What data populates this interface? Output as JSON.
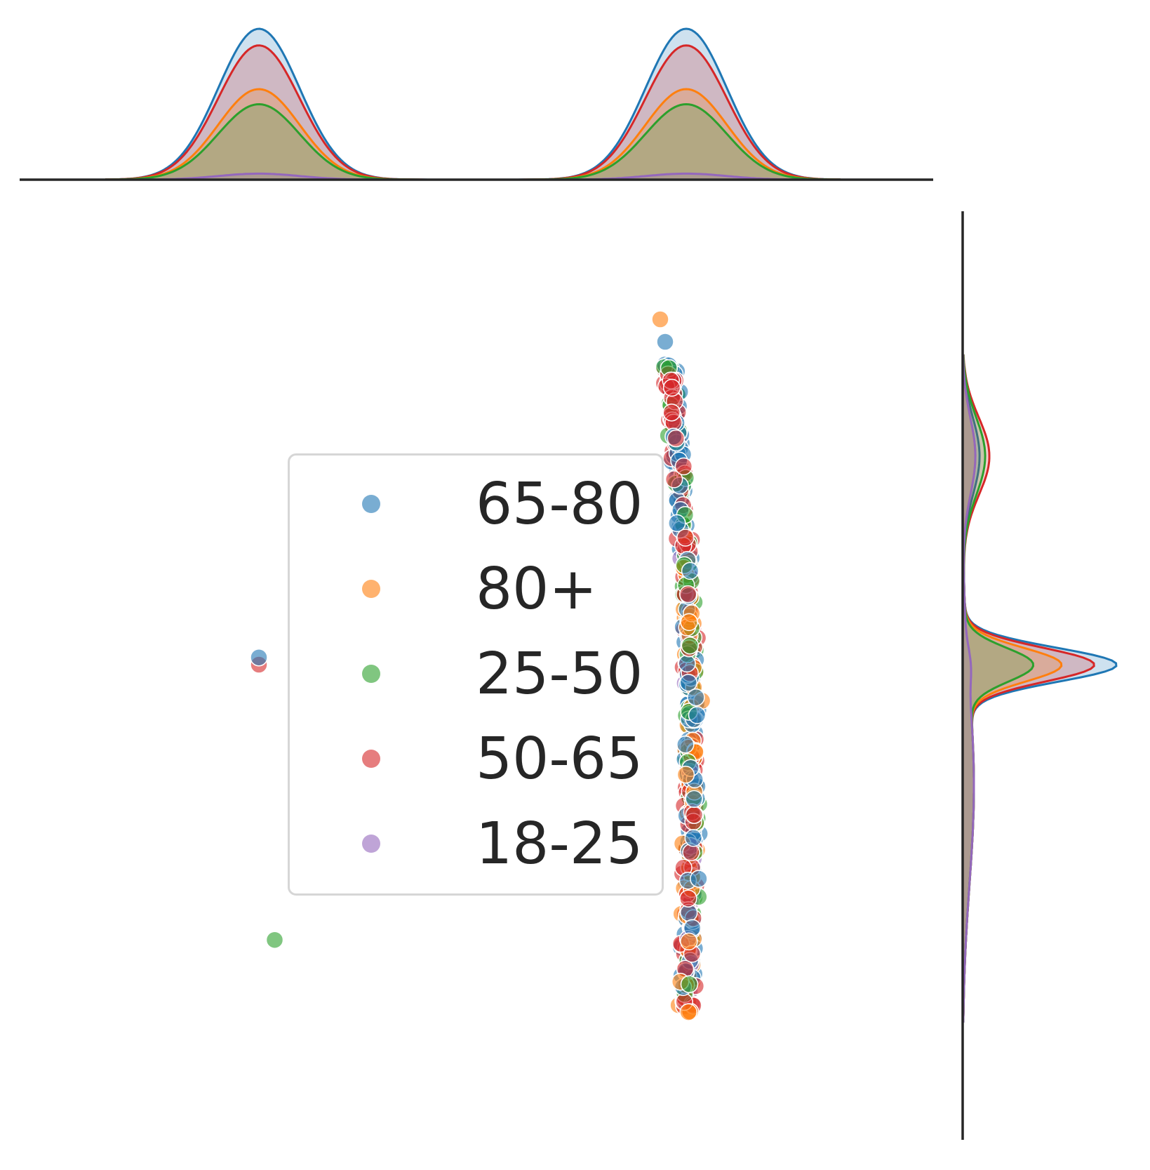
{
  "chart_data": {
    "type": "scatter",
    "subtype": "jointplot with marginal KDE",
    "title": "",
    "xlabel": "",
    "ylabel": "",
    "axes_visible": false,
    "grid": false,
    "legend_placement": "center",
    "series": [
      {
        "name": "65-80",
        "color": "#1f77b4",
        "marginal_x_peak": 1.0,
        "marginal_y_peak": 1.0
      },
      {
        "name": "80+",
        "color": "#ff7f0e",
        "marginal_x_peak": 0.6,
        "marginal_y_peak": 0.62
      },
      {
        "name": "25-50",
        "color": "#2ca02c",
        "marginal_x_peak": 0.5,
        "marginal_y_peak": 0.44
      },
      {
        "name": "50-65",
        "color": "#d62728",
        "marginal_x_peak": 0.89,
        "marginal_y_peak": 0.83
      },
      {
        "name": "18-25",
        "color": "#9467bd",
        "marginal_x_peak": 0.04,
        "marginal_y_peak": 0.02
      }
    ],
    "outliers": [
      {
        "series": "50-65",
        "x": 0.0,
        "y": 0.0
      },
      {
        "series": "65-80",
        "x": 0.0,
        "y": 0.01
      },
      {
        "series": "25-50",
        "x": 0.05,
        "y": -0.38
      }
    ],
    "main_cluster": {
      "x_center": 0.5,
      "y_range": [
        -0.48,
        0.45
      ]
    },
    "marginal_x_modes": [
      0.0,
      0.5
    ],
    "marginal_y_mode": 0.0
  }
}
